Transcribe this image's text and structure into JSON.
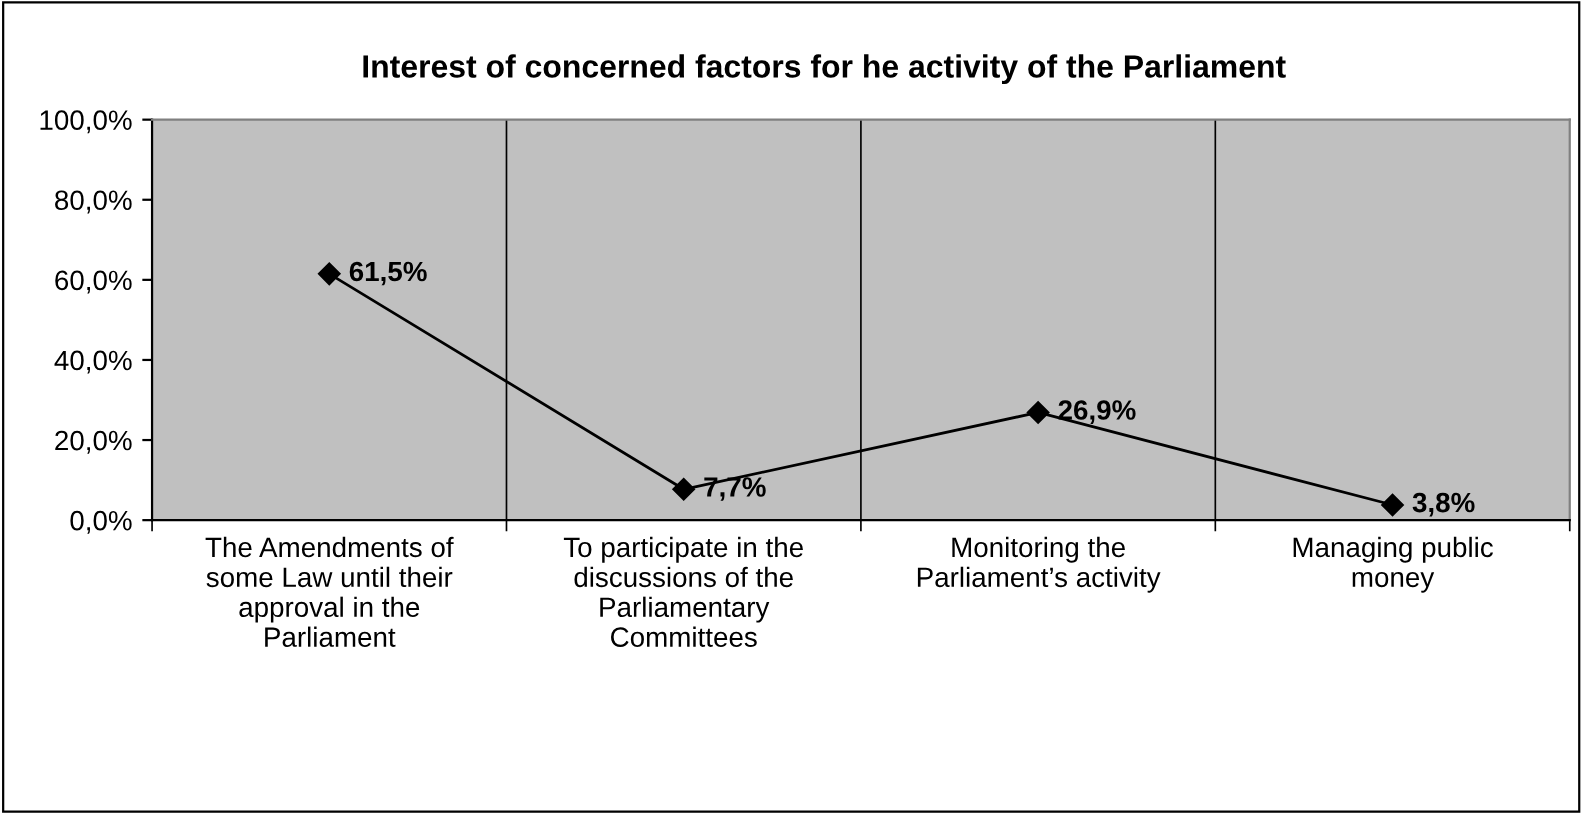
{
  "chart_data": {
    "type": "line",
    "title": "Interest of concerned factors for he activity of the Parliament",
    "categories": [
      "The Amendments of\nsome Law until their\napproval in the\nParliament",
      "To participate in the\ndiscussions of the\nParliamentary\nCommittees",
      "Monitoring the\nParliament’s activity",
      "Managing public\nmoney"
    ],
    "series": [
      {
        "color": "#000000",
        "values": [
          61.5,
          7.7,
          26.9,
          3.8
        ],
        "value_labels": [
          "61,5%",
          "7,7%",
          "26,9%",
          "3,8%"
        ]
      }
    ],
    "ylim": [
      0,
      100
    ],
    "yticks": [
      {
        "value": 0,
        "label": "0,0%"
      },
      {
        "value": 20,
        "label": "20,0%"
      },
      {
        "value": 40,
        "label": "40,0%"
      },
      {
        "value": 60,
        "label": "60,0%"
      },
      {
        "value": 80,
        "label": "80,0%"
      },
      {
        "value": 100,
        "label": "100,0%"
      }
    ],
    "grid": "x",
    "marker": "diamond",
    "line_style": "solid",
    "legend": false
  }
}
